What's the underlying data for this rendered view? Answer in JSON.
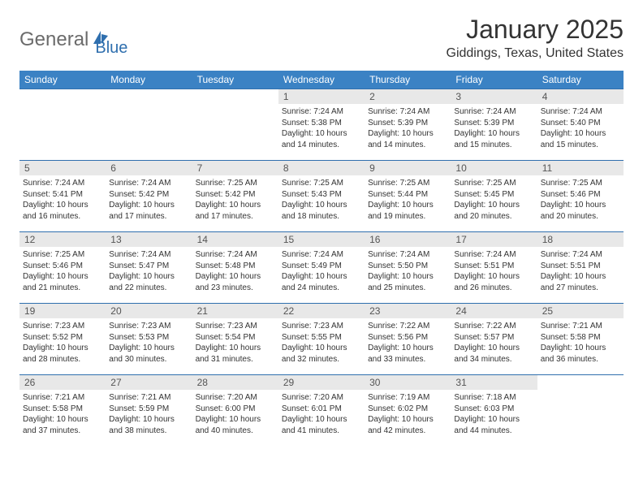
{
  "logo": {
    "text1": "General",
    "text2": "Blue"
  },
  "title": "January 2025",
  "location": "Giddings, Texas, United States",
  "colors": {
    "header_bg": "#3b82c4",
    "header_text": "#ffffff",
    "row_border": "#2f6fae",
    "daynum_bg": "#e8e8e8",
    "body_text": "#333333",
    "logo_gray": "#6b6b6b",
    "logo_blue": "#2f6fae"
  },
  "weekdays": [
    "Sunday",
    "Monday",
    "Tuesday",
    "Wednesday",
    "Thursday",
    "Friday",
    "Saturday"
  ],
  "weeks": [
    [
      null,
      null,
      null,
      {
        "n": "1",
        "sr": "7:24 AM",
        "ss": "5:38 PM",
        "dl": "10 hours and 14 minutes."
      },
      {
        "n": "2",
        "sr": "7:24 AM",
        "ss": "5:39 PM",
        "dl": "10 hours and 14 minutes."
      },
      {
        "n": "3",
        "sr": "7:24 AM",
        "ss": "5:39 PM",
        "dl": "10 hours and 15 minutes."
      },
      {
        "n": "4",
        "sr": "7:24 AM",
        "ss": "5:40 PM",
        "dl": "10 hours and 15 minutes."
      }
    ],
    [
      {
        "n": "5",
        "sr": "7:24 AM",
        "ss": "5:41 PM",
        "dl": "10 hours and 16 minutes."
      },
      {
        "n": "6",
        "sr": "7:24 AM",
        "ss": "5:42 PM",
        "dl": "10 hours and 17 minutes."
      },
      {
        "n": "7",
        "sr": "7:25 AM",
        "ss": "5:42 PM",
        "dl": "10 hours and 17 minutes."
      },
      {
        "n": "8",
        "sr": "7:25 AM",
        "ss": "5:43 PM",
        "dl": "10 hours and 18 minutes."
      },
      {
        "n": "9",
        "sr": "7:25 AM",
        "ss": "5:44 PM",
        "dl": "10 hours and 19 minutes."
      },
      {
        "n": "10",
        "sr": "7:25 AM",
        "ss": "5:45 PM",
        "dl": "10 hours and 20 minutes."
      },
      {
        "n": "11",
        "sr": "7:25 AM",
        "ss": "5:46 PM",
        "dl": "10 hours and 20 minutes."
      }
    ],
    [
      {
        "n": "12",
        "sr": "7:25 AM",
        "ss": "5:46 PM",
        "dl": "10 hours and 21 minutes."
      },
      {
        "n": "13",
        "sr": "7:24 AM",
        "ss": "5:47 PM",
        "dl": "10 hours and 22 minutes."
      },
      {
        "n": "14",
        "sr": "7:24 AM",
        "ss": "5:48 PM",
        "dl": "10 hours and 23 minutes."
      },
      {
        "n": "15",
        "sr": "7:24 AM",
        "ss": "5:49 PM",
        "dl": "10 hours and 24 minutes."
      },
      {
        "n": "16",
        "sr": "7:24 AM",
        "ss": "5:50 PM",
        "dl": "10 hours and 25 minutes."
      },
      {
        "n": "17",
        "sr": "7:24 AM",
        "ss": "5:51 PM",
        "dl": "10 hours and 26 minutes."
      },
      {
        "n": "18",
        "sr": "7:24 AM",
        "ss": "5:51 PM",
        "dl": "10 hours and 27 minutes."
      }
    ],
    [
      {
        "n": "19",
        "sr": "7:23 AM",
        "ss": "5:52 PM",
        "dl": "10 hours and 28 minutes."
      },
      {
        "n": "20",
        "sr": "7:23 AM",
        "ss": "5:53 PM",
        "dl": "10 hours and 30 minutes."
      },
      {
        "n": "21",
        "sr": "7:23 AM",
        "ss": "5:54 PM",
        "dl": "10 hours and 31 minutes."
      },
      {
        "n": "22",
        "sr": "7:23 AM",
        "ss": "5:55 PM",
        "dl": "10 hours and 32 minutes."
      },
      {
        "n": "23",
        "sr": "7:22 AM",
        "ss": "5:56 PM",
        "dl": "10 hours and 33 minutes."
      },
      {
        "n": "24",
        "sr": "7:22 AM",
        "ss": "5:57 PM",
        "dl": "10 hours and 34 minutes."
      },
      {
        "n": "25",
        "sr": "7:21 AM",
        "ss": "5:58 PM",
        "dl": "10 hours and 36 minutes."
      }
    ],
    [
      {
        "n": "26",
        "sr": "7:21 AM",
        "ss": "5:58 PM",
        "dl": "10 hours and 37 minutes."
      },
      {
        "n": "27",
        "sr": "7:21 AM",
        "ss": "5:59 PM",
        "dl": "10 hours and 38 minutes."
      },
      {
        "n": "28",
        "sr": "7:20 AM",
        "ss": "6:00 PM",
        "dl": "10 hours and 40 minutes."
      },
      {
        "n": "29",
        "sr": "7:20 AM",
        "ss": "6:01 PM",
        "dl": "10 hours and 41 minutes."
      },
      {
        "n": "30",
        "sr": "7:19 AM",
        "ss": "6:02 PM",
        "dl": "10 hours and 42 minutes."
      },
      {
        "n": "31",
        "sr": "7:18 AM",
        "ss": "6:03 PM",
        "dl": "10 hours and 44 minutes."
      },
      null
    ]
  ],
  "labels": {
    "sunrise": "Sunrise:",
    "sunset": "Sunset:",
    "daylight": "Daylight:"
  }
}
